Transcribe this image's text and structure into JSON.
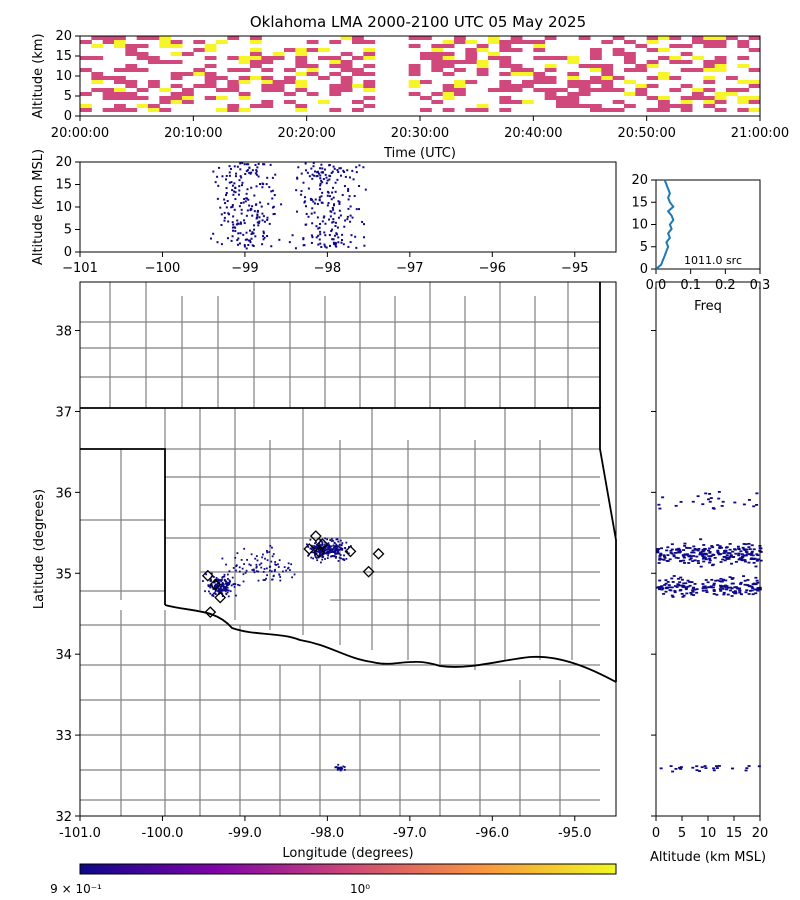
{
  "chart_data": [
    {
      "panel": "time-height",
      "type": "heatmap",
      "title": "Oklahoma LMA 2000-2100 UTC 05 May 2025",
      "xlabel": "Time (UTC)",
      "ylabel": "Altitude (km)",
      "xticks": [
        "20:00:00",
        "20:10:00",
        "20:20:00",
        "20:30:00",
        "20:40:00",
        "20:50:00",
        "21:00:00"
      ],
      "yticks": [
        "0",
        "5",
        "10",
        "15",
        "20"
      ],
      "xlim_minutes": [
        0,
        60
      ],
      "ylim": [
        0,
        20
      ]
    },
    {
      "panel": "longitude-altitude",
      "type": "scatter",
      "xlabel": "",
      "ylabel": "Altitude (km MSL)",
      "xticks": [
        "−101",
        "−100",
        "−99",
        "−98",
        "−97",
        "−96",
        "−95"
      ],
      "yticks": [
        "0",
        "5",
        "10",
        "15",
        "20"
      ],
      "xlim": [
        -101,
        -94.5
      ],
      "ylim": [
        0,
        20
      ]
    },
    {
      "panel": "altitude-histogram",
      "type": "line",
      "xlabel": "Freq",
      "xticks": [
        "0.0",
        "0.1",
        "0.2",
        "0.3"
      ],
      "yticks": [
        "0",
        "5",
        "10",
        "15",
        "20"
      ],
      "xlim": [
        0,
        0.3
      ],
      "ylim": [
        0,
        20
      ],
      "annotation": "1011.0 src",
      "series": [
        {
          "altitude": [
            0,
            1,
            2,
            3,
            4,
            5,
            6,
            7,
            8,
            9,
            10,
            11,
            12,
            13,
            14,
            15,
            16,
            17,
            18,
            19,
            20
          ],
          "freq": [
            0.0,
            0.015,
            0.02,
            0.025,
            0.03,
            0.035,
            0.03,
            0.04,
            0.035,
            0.045,
            0.04,
            0.05,
            0.045,
            0.035,
            0.05,
            0.04,
            0.035,
            0.04,
            0.035,
            0.03,
            0.025
          ]
        }
      ]
    },
    {
      "panel": "plan-view",
      "type": "scatter",
      "xlabel": "Longitude (degrees)",
      "ylabel": "Latitude (degrees)",
      "xticks": [
        "-101.0",
        "-100.0",
        "-99.0",
        "-98.0",
        "-97.0",
        "-96.0",
        "-95.0"
      ],
      "yticks": [
        "32",
        "33",
        "34",
        "35",
        "36",
        "37",
        "38"
      ],
      "xlim": [
        -101,
        -94.5
      ],
      "ylim": [
        32,
        38.6
      ],
      "station_markers": [
        {
          "lon": -99.45,
          "lat": 34.97
        },
        {
          "lon": -99.36,
          "lat": 34.86
        },
        {
          "lon": -99.3,
          "lat": 34.7
        },
        {
          "lon": -99.42,
          "lat": 34.52
        },
        {
          "lon": -98.14,
          "lat": 35.46
        },
        {
          "lon": -98.06,
          "lat": 35.36
        },
        {
          "lon": -98.22,
          "lat": 35.3
        },
        {
          "lon": -98.1,
          "lat": 35.26
        },
        {
          "lon": -97.72,
          "lat": 35.27
        },
        {
          "lon": -97.38,
          "lat": 35.24
        },
        {
          "lon": -97.5,
          "lat": 35.02
        }
      ]
    },
    {
      "panel": "altitude-latitude",
      "type": "scatter",
      "xlabel": "Altitude (km MSL)",
      "xticks": [
        "0",
        "5",
        "10",
        "15",
        "20"
      ],
      "xlim": [
        0,
        20
      ],
      "ylim": [
        32,
        38.6
      ]
    },
    {
      "panel": "colorbar",
      "type": "heatmap",
      "tick_labels": [
        "9 × 10⁻¹",
        "10⁰"
      ],
      "colors": [
        "#0d0887",
        "#7e03a8",
        "#cc4778",
        "#f89540",
        "#f0f921"
      ]
    }
  ],
  "colors": {
    "source_dot": "#0d0887",
    "hist_line": "#1f77b4",
    "density_low": "#d1487d",
    "density_high": "#f5f52a",
    "county_line": "#808080",
    "state_line": "#000000"
  }
}
